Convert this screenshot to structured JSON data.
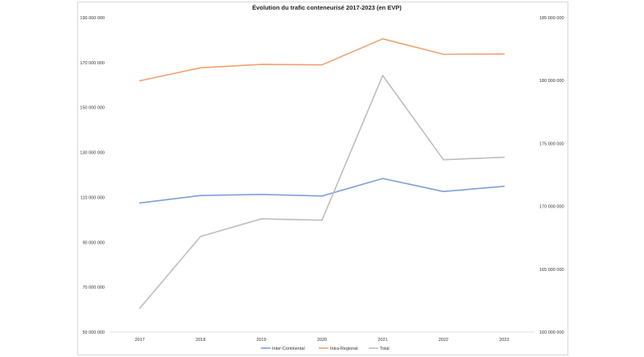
{
  "chart_data": {
    "type": "line",
    "title": "Évolution du trafic conteneurisé 2017-2023 (en EVP)",
    "categories": [
      "2017",
      "2018",
      "2019",
      "2020",
      "2021",
      "2022",
      "2023"
    ],
    "left_axis": {
      "min": 50000000,
      "max": 190000000,
      "step": 20000000,
      "tick_labels": [
        "50 000 000",
        "70 000 000",
        "90 000 000",
        "110 000 000",
        "130 000 000",
        "150 000 000",
        "170 000 000",
        "190 000 000"
      ]
    },
    "right_axis": {
      "min": 160000000,
      "max": 185000000,
      "step": 5000000,
      "tick_labels": [
        "160 000 000",
        "165 000 000",
        "170 000 000",
        "175 000 000",
        "180 000 000",
        "185 000 000"
      ]
    },
    "series": [
      {
        "name": "Inter-Continental",
        "axis": "left",
        "color": "#7f9fd8",
        "values": [
          107500000,
          110800000,
          111300000,
          110600000,
          118400000,
          112600000,
          114900000
        ]
      },
      {
        "name": "Intra-Regional",
        "axis": "left",
        "color": "#f0a070",
        "values": [
          161900000,
          167700000,
          169200000,
          169000000,
          180600000,
          173700000,
          173800000
        ]
      },
      {
        "name": "Total",
        "axis": "right",
        "color": "#bdbdbd",
        "values": [
          161900000,
          167600000,
          169000000,
          168900000,
          180400000,
          173700000,
          173900000
        ]
      }
    ],
    "grid": false,
    "legend_position": "bottom"
  }
}
